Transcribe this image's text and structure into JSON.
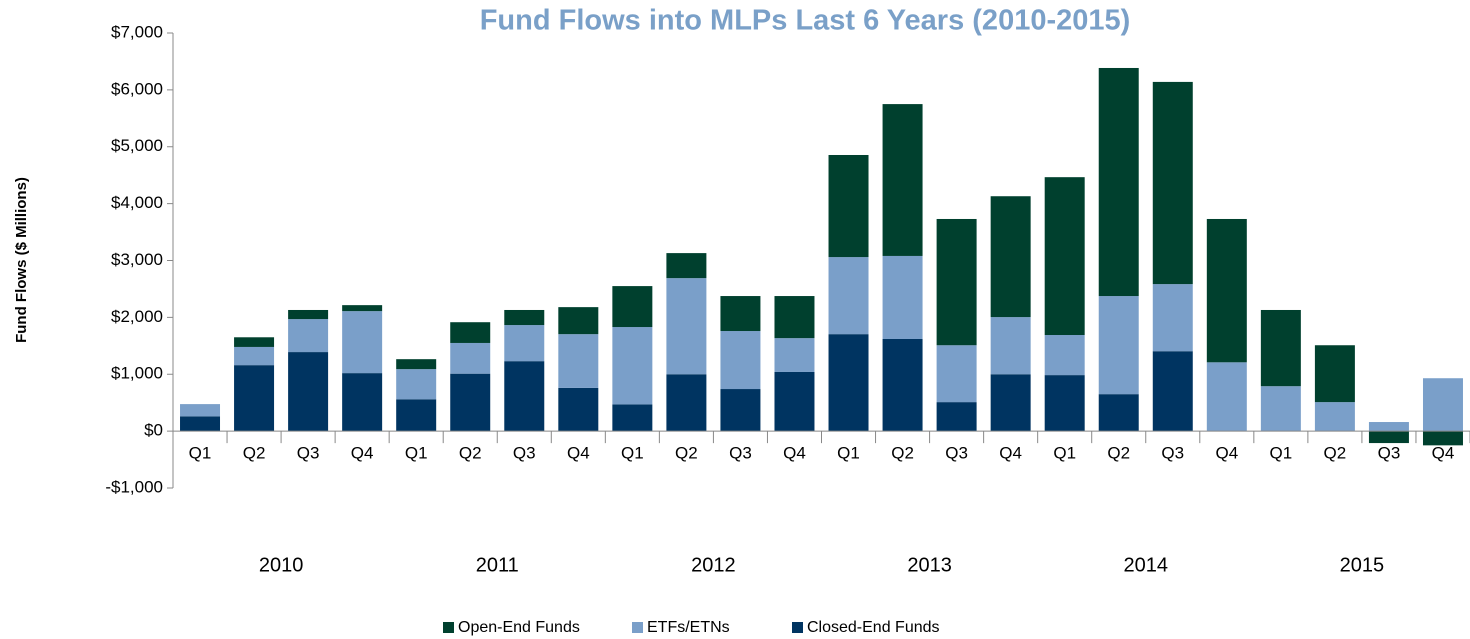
{
  "chart_data": {
    "type": "stacked_bar",
    "title": "Fund Flows into MLPs Last 6 Years (2010-2015)",
    "y_label": "Fund Flows ($ Millions)",
    "categories": [
      "Q1",
      "Q2",
      "Q3",
      "Q4",
      "Q1",
      "Q2",
      "Q3",
      "Q4",
      "Q1",
      "Q2",
      "Q3",
      "Q4",
      "Q1",
      "Q2",
      "Q3",
      "Q4",
      "Q1",
      "Q2",
      "Q3",
      "Q4",
      "Q1",
      "Q2",
      "Q3",
      "Q4"
    ],
    "x_groups": [
      "2010",
      null,
      null,
      null,
      "2011",
      null,
      null,
      null,
      "2012",
      null,
      null,
      null,
      "2013",
      null,
      null,
      null,
      "2014",
      null,
      null,
      null,
      "2015",
      null,
      null,
      null
    ],
    "series": [
      {
        "name": "Open-End Funds",
        "color": "#00402e",
        "values": [
          0,
          170,
          160,
          105,
          175,
          365,
          265,
          475,
          720,
          440,
          615,
          740,
          1795,
          2670,
          2220,
          2125,
          2775,
          4010,
          3555,
          2520,
          1340,
          1000,
          -210,
          -250
        ]
      },
      {
        "name": "ETFs/ETNs",
        "color": "#7a9fc9",
        "values": [
          215,
          320,
          580,
          1090,
          530,
          540,
          635,
          945,
          1360,
          1690,
          1020,
          595,
          1355,
          1460,
          1000,
          1005,
          705,
          1725,
          1180,
          1210,
          790,
          510,
          160,
          930
        ]
      },
      {
        "name": "Closed-End Funds",
        "color": "#003461",
        "values": [
          260,
          1160,
          1390,
          1020,
          560,
          1010,
          1230,
          760,
          470,
          1000,
          740,
          1040,
          1705,
          1620,
          510,
          1000,
          985,
          650,
          1405,
          0,
          0,
          0,
          0,
          0
        ]
      }
    ],
    "ylim": [
      -1000,
      7000
    ],
    "yticks": [
      {
        "value": -1000,
        "label": "-$1,000"
      },
      {
        "value": 0,
        "label": "$0"
      },
      {
        "value": 1000,
        "label": "$1,000"
      },
      {
        "value": 2000,
        "label": "$2,000"
      },
      {
        "value": 3000,
        "label": "$3,000"
      },
      {
        "value": 4000,
        "label": "$4,000"
      },
      {
        "value": 5000,
        "label": "$5,000"
      },
      {
        "value": 6000,
        "label": "$6,000"
      },
      {
        "value": 7000,
        "label": "$7,000"
      }
    ],
    "grid": false,
    "legend": "bottom"
  }
}
